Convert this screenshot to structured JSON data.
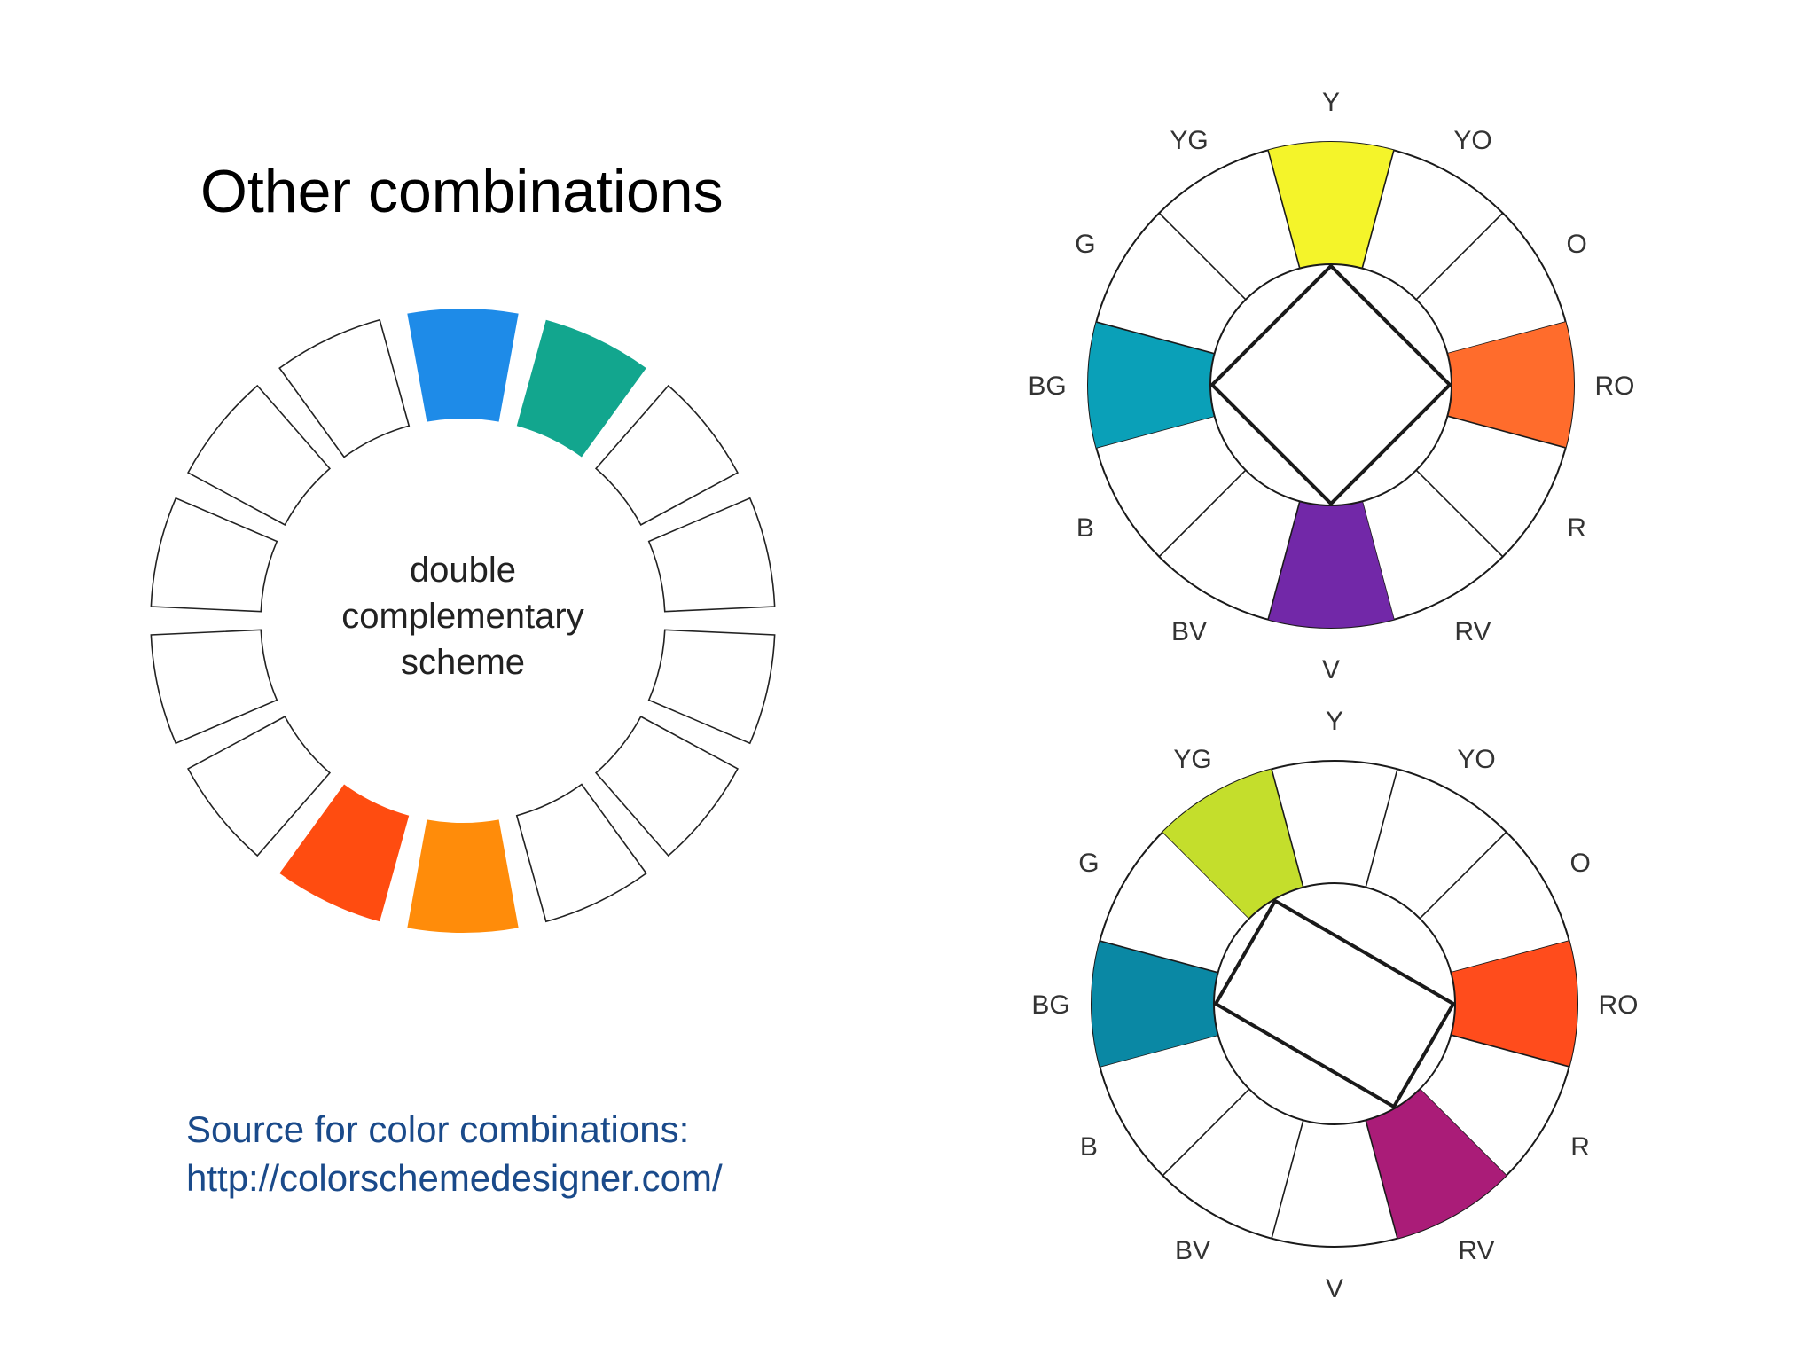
{
  "slide": {
    "title": "Other combinations",
    "source_line1": "Source for color combinations:",
    "source_line2": "http://colorschemedesigner.com/"
  },
  "left_wheel": {
    "center_text": [
      "double",
      "complementary",
      "scheme"
    ],
    "segments_clockwise_from_top": [
      {
        "highlighted": true,
        "color": "#1e8be8"
      },
      {
        "highlighted": true,
        "color": "#12a68e"
      },
      {
        "highlighted": false
      },
      {
        "highlighted": false
      },
      {
        "highlighted": false
      },
      {
        "highlighted": false
      },
      {
        "highlighted": false
      },
      {
        "highlighted": true,
        "color": "#ff8c0a"
      },
      {
        "highlighted": true,
        "color": "#ff4c10"
      },
      {
        "highlighted": false
      },
      {
        "highlighted": false
      },
      {
        "highlighted": false
      },
      {
        "highlighted": false
      },
      {
        "highlighted": false
      }
    ]
  },
  "hue_labels": [
    "Y",
    "YO",
    "O",
    "RO",
    "R",
    "RV",
    "V",
    "BV",
    "B",
    "BG",
    "G",
    "YG"
  ],
  "top_wheel": {
    "shape": "square",
    "highlighted": {
      "Y": "#f4f42a",
      "RO": "#ff6c2c",
      "V": "#7228a8",
      "BG": "#0aa0b8"
    }
  },
  "bottom_wheel": {
    "shape": "rectangle",
    "highlighted": {
      "YG": "#c4de2c",
      "RO": "#ff4c1c",
      "RV": "#aa1c78",
      "BG": "#0a88a4"
    }
  }
}
